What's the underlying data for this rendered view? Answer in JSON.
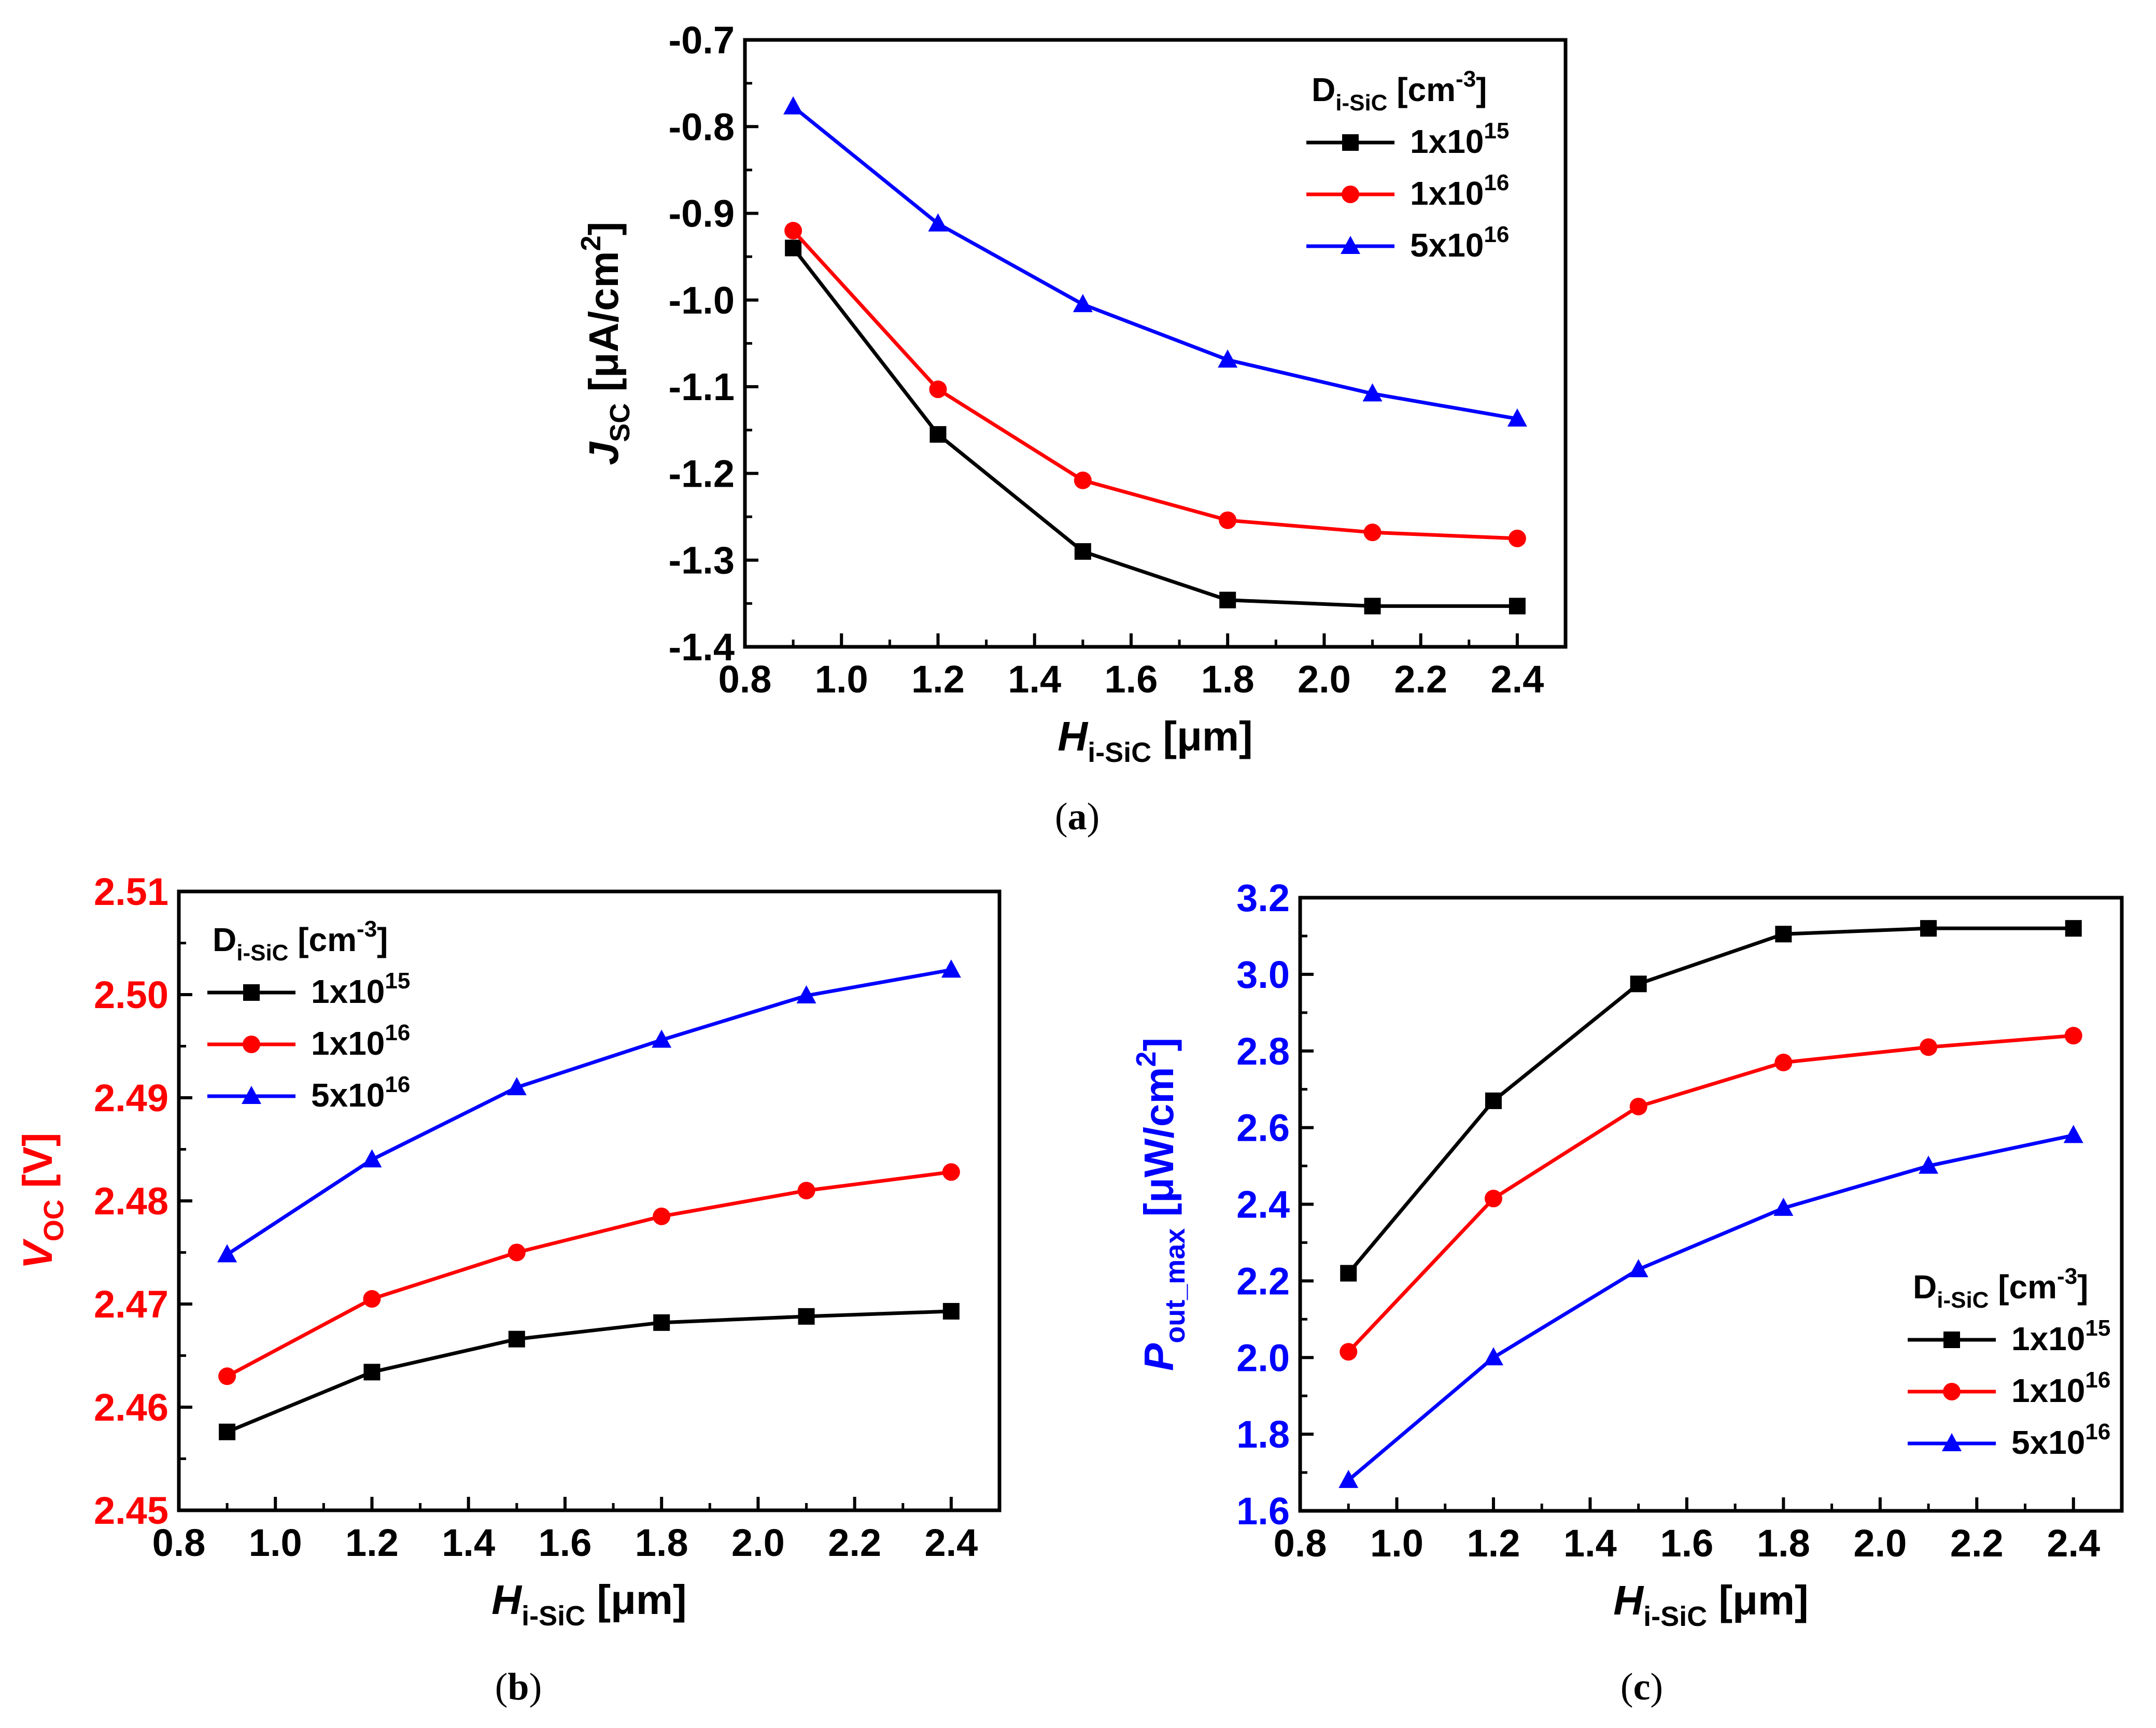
{
  "colors": {
    "black": "#000000",
    "red": "#ff0000",
    "blue": "#0000ff",
    "axis": "#000000"
  },
  "chart_data": [
    {
      "id": "a",
      "type": "line",
      "caption": "(a)",
      "xlabel": {
        "main": "H",
        "sub": "i-SiC",
        "unit": " [μm]"
      },
      "ylabel": {
        "main": "J",
        "sub": "SC",
        "unit": " [μA/cm",
        "sup": "2",
        "close": "]"
      },
      "ylabel_color": "#000000",
      "xlim": [
        0.8,
        2.5
      ],
      "ylim": [
        -1.4,
        -0.7
      ],
      "xticks": [
        0.8,
        1.0,
        1.2,
        1.4,
        1.6,
        1.8,
        2.0,
        2.2,
        2.4
      ],
      "xtick_labels": [
        "0.8",
        "1.0",
        "1.2",
        "1.4",
        "1.6",
        "1.8",
        "2.0",
        "2.2",
        "2.4"
      ],
      "yticks": [
        -1.4,
        -1.3,
        -1.2,
        -1.1,
        -1.0,
        -0.9,
        -0.8,
        -0.7
      ],
      "ytick_labels": [
        "-1.4",
        "-1.3",
        "-1.2",
        "-1.1",
        "-1.0",
        "-0.9",
        "-0.8",
        "-0.7"
      ],
      "legend": {
        "title_main": "D",
        "title_sub": "i-SiC",
        "title_unit": " [cm",
        "title_sup": "-3",
        "title_close": "]",
        "position": "top-right"
      },
      "x": [
        0.9,
        1.2,
        1.5,
        1.8,
        2.1,
        2.4
      ],
      "series": [
        {
          "name": "1x10",
          "exp": "15",
          "color": "#000000",
          "marker": "square",
          "values": [
            -0.94,
            -1.155,
            -1.29,
            -1.346,
            -1.353,
            -1.353
          ]
        },
        {
          "name": "1x10",
          "exp": "16",
          "color": "#ff0000",
          "marker": "circle",
          "values": [
            -0.92,
            -1.103,
            -1.208,
            -1.254,
            -1.268,
            -1.275
          ]
        },
        {
          "name": "5x10",
          "exp": "16",
          "color": "#0000ff",
          "marker": "triangle",
          "values": [
            -0.777,
            -0.912,
            -1.005,
            -1.069,
            -1.108,
            -1.137
          ]
        }
      ]
    },
    {
      "id": "b",
      "type": "line",
      "caption": "(b)",
      "xlabel": {
        "main": "H",
        "sub": "i-SiC",
        "unit": " [μm]"
      },
      "ylabel": {
        "main": "V",
        "sub": "OC",
        "unit": " [V]",
        "sup": "",
        "close": ""
      },
      "ylabel_color": "#ff0000",
      "xlim": [
        0.8,
        2.5
      ],
      "ylim": [
        2.45,
        2.51
      ],
      "xticks": [
        0.8,
        1.0,
        1.2,
        1.4,
        1.6,
        1.8,
        2.0,
        2.2,
        2.4
      ],
      "xtick_labels": [
        "0.8",
        "1.0",
        "1.2",
        "1.4",
        "1.6",
        "1.8",
        "2.0",
        "2.2",
        "2.4"
      ],
      "yticks": [
        2.45,
        2.46,
        2.47,
        2.48,
        2.49,
        2.5,
        2.51
      ],
      "ytick_labels": [
        "2.45",
        "2.46",
        "2.47",
        "2.48",
        "2.49",
        "2.50",
        "2.51"
      ],
      "legend": {
        "title_main": "D",
        "title_sub": "i-SiC",
        "title_unit": " [cm",
        "title_sup": "-3",
        "title_close": "]",
        "position": "top-left"
      },
      "x": [
        0.9,
        1.2,
        1.5,
        1.8,
        2.1,
        2.4
      ],
      "series": [
        {
          "name": "1x10",
          "exp": "15",
          "color": "#000000",
          "marker": "square",
          "values": [
            2.4576,
            2.4634,
            2.4666,
            2.4682,
            2.4688,
            2.4693
          ]
        },
        {
          "name": "1x10",
          "exp": "16",
          "color": "#ff0000",
          "marker": "circle",
          "values": [
            2.463,
            2.4705,
            2.475,
            2.4785,
            2.481,
            2.4828
          ]
        },
        {
          "name": "5x10",
          "exp": "16",
          "color": "#0000ff",
          "marker": "triangle",
          "values": [
            2.4748,
            2.484,
            2.491,
            2.4956,
            2.4999,
            2.5024
          ]
        }
      ]
    },
    {
      "id": "c",
      "type": "line",
      "caption": "(c)",
      "xlabel": {
        "main": "H",
        "sub": "i-SiC",
        "unit": " [μm]"
      },
      "ylabel": {
        "main": "P",
        "sub": "out_max",
        "unit": " [μW/cm",
        "sup": "2",
        "close": "]"
      },
      "ylabel_color": "#0000ff",
      "xlim": [
        0.8,
        2.5
      ],
      "ylim": [
        1.6,
        3.2
      ],
      "xticks": [
        0.8,
        1.0,
        1.2,
        1.4,
        1.6,
        1.8,
        2.0,
        2.2,
        2.4
      ],
      "xtick_labels": [
        "0.8",
        "1.0",
        "1.2",
        "1.4",
        "1.6",
        "1.8",
        "2.0",
        "2.2",
        "2.4"
      ],
      "yticks": [
        1.6,
        1.8,
        2.0,
        2.2,
        2.4,
        2.6,
        2.8,
        3.0,
        3.2
      ],
      "ytick_labels": [
        "1.6",
        "1.8",
        "2.0",
        "2.2",
        "2.4",
        "2.6",
        "2.8",
        "3.0",
        "3.2"
      ],
      "legend": {
        "title_main": "D",
        "title_sub": "i-SiC",
        "title_unit": " [cm",
        "title_sup": "-3",
        "title_close": "]",
        "position": "bottom-right"
      },
      "x": [
        0.9,
        1.2,
        1.5,
        1.8,
        2.1,
        2.4
      ],
      "series": [
        {
          "name": "1x10",
          "exp": "15",
          "color": "#000000",
          "marker": "square",
          "values": [
            2.22,
            2.67,
            2.975,
            3.105,
            3.12,
            3.12
          ]
        },
        {
          "name": "1x10",
          "exp": "16",
          "color": "#ff0000",
          "marker": "circle",
          "values": [
            2.015,
            2.415,
            2.655,
            2.77,
            2.81,
            2.84
          ]
        },
        {
          "name": "5x10",
          "exp": "16",
          "color": "#0000ff",
          "marker": "triangle",
          "values": [
            1.68,
            2.0,
            2.23,
            2.39,
            2.5,
            2.58
          ]
        }
      ]
    }
  ]
}
